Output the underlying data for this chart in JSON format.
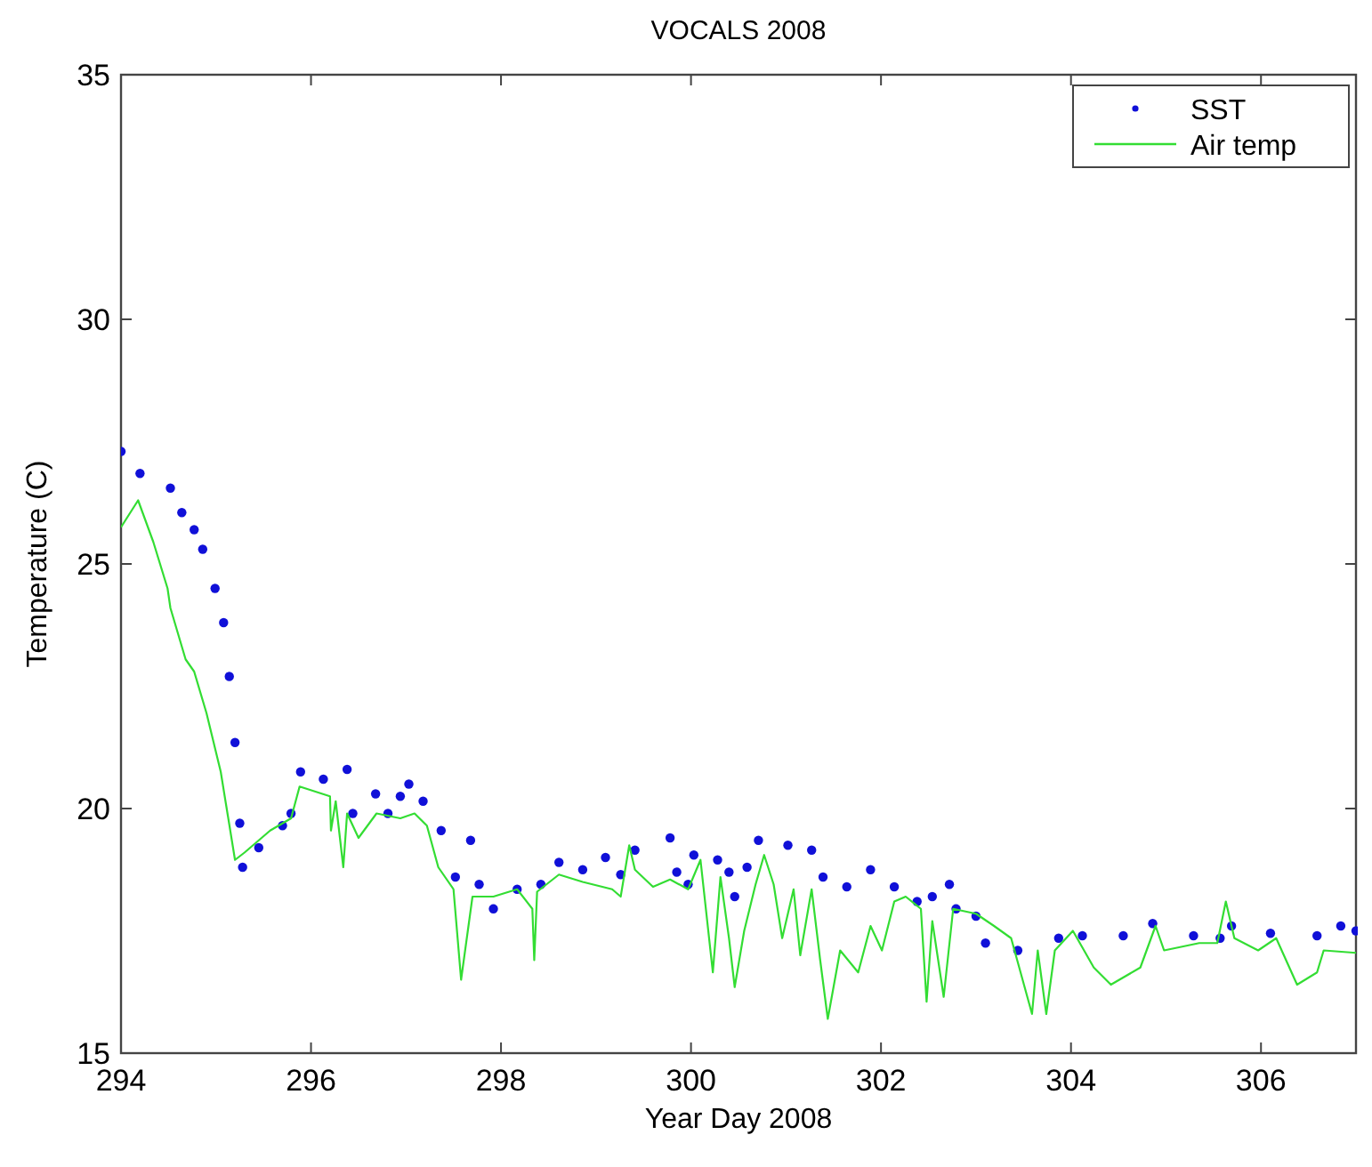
{
  "chart_data": {
    "type": "line",
    "title": "VOCALS 2008",
    "xlabel": "Year Day 2008",
    "ylabel": "Temperature (C)",
    "xlim": [
      294,
      307
    ],
    "xticks": [
      294,
      296,
      298,
      300,
      302,
      304,
      306
    ],
    "ylim": [
      15,
      35
    ],
    "yticks": [
      15,
      20,
      25,
      30,
      35
    ],
    "grid": false,
    "legend": "top right",
    "series": [
      {
        "name": "SST",
        "type": "scatter",
        "marker": "circle",
        "color": "#1010d8",
        "x": [
          294.0,
          294.2,
          294.52,
          294.64,
          294.77,
          294.86,
          294.99,
          295.08,
          295.14,
          295.2,
          295.25,
          295.28,
          295.45,
          295.7,
          295.79,
          295.89,
          296.13,
          296.38,
          296.44,
          296.68,
          296.81,
          296.94,
          297.03,
          297.18,
          297.37,
          297.52,
          297.68,
          297.77,
          297.92,
          298.17,
          298.42,
          298.61,
          298.86,
          299.1,
          299.26,
          299.41,
          299.78,
          299.85,
          299.97,
          300.03,
          300.28,
          300.4,
          300.46,
          300.59,
          300.71,
          301.02,
          301.27,
          301.39,
          301.64,
          301.89,
          302.14,
          302.38,
          302.54,
          302.72,
          302.79,
          303.0,
          303.1,
          303.44,
          303.87,
          304.12,
          304.55,
          304.86,
          305.29,
          305.57,
          305.69,
          306.1,
          306.59,
          306.84,
          307.0
        ],
        "values": [
          27.3,
          26.85,
          26.55,
          26.05,
          25.7,
          25.3,
          24.5,
          23.8,
          22.7,
          21.35,
          19.7,
          18.8,
          19.2,
          19.65,
          19.9,
          20.75,
          20.6,
          20.8,
          19.9,
          20.3,
          19.9,
          20.25,
          20.5,
          20.15,
          19.55,
          18.6,
          19.35,
          18.45,
          17.95,
          18.35,
          18.45,
          18.9,
          18.75,
          19.0,
          18.65,
          19.15,
          19.4,
          18.7,
          18.45,
          19.05,
          18.95,
          18.7,
          18.2,
          18.8,
          19.35,
          19.25,
          19.15,
          18.6,
          18.4,
          18.75,
          18.4,
          18.1,
          18.2,
          18.45,
          17.95,
          17.8,
          17.25,
          17.1,
          17.35,
          17.4,
          17.4,
          17.65,
          17.4,
          17.35,
          17.6,
          17.45,
          17.4,
          17.6,
          17.5
        ]
      },
      {
        "name": "Air temp",
        "type": "line",
        "marker": "none",
        "line_style": "solid",
        "color": "#33dd33",
        "x": [
          294.0,
          294.18,
          294.34,
          294.49,
          294.52,
          294.68,
          294.77,
          294.9,
          295.05,
          295.2,
          295.3,
          295.57,
          295.79,
          295.88,
          296.2,
          296.21,
          296.26,
          296.34,
          296.38,
          296.5,
          296.69,
          296.94,
          297.09,
          297.22,
          297.34,
          297.5,
          297.58,
          297.7,
          297.92,
          298.17,
          298.33,
          298.35,
          298.38,
          298.61,
          298.86,
          299.17,
          299.26,
          299.35,
          299.41,
          299.6,
          299.78,
          299.97,
          300.1,
          300.23,
          300.31,
          300.4,
          300.46,
          300.56,
          300.68,
          300.77,
          300.87,
          300.96,
          301.08,
          301.15,
          301.27,
          301.36,
          301.44,
          301.57,
          301.76,
          301.89,
          302.01,
          302.14,
          302.26,
          302.42,
          302.48,
          302.54,
          302.66,
          302.76,
          303.0,
          303.19,
          303.37,
          303.59,
          303.65,
          303.74,
          303.83,
          304.02,
          304.24,
          304.42,
          304.73,
          304.89,
          304.98,
          305.35,
          305.54,
          305.63,
          305.72,
          305.97,
          306.16,
          306.38,
          306.59,
          306.66,
          307.0
        ],
        "values": [
          25.75,
          26.3,
          25.45,
          24.5,
          24.1,
          23.05,
          22.8,
          21.95,
          20.75,
          18.95,
          19.1,
          19.55,
          19.8,
          20.45,
          20.25,
          19.55,
          20.15,
          18.8,
          19.9,
          19.4,
          19.9,
          19.8,
          19.9,
          19.65,
          18.8,
          18.35,
          16.5,
          18.2,
          18.2,
          18.35,
          17.95,
          16.9,
          18.3,
          18.65,
          18.5,
          18.35,
          18.2,
          19.25,
          18.75,
          18.4,
          18.55,
          18.35,
          18.95,
          16.65,
          18.6,
          17.35,
          16.35,
          17.5,
          18.45,
          19.05,
          18.45,
          17.35,
          18.35,
          17.0,
          18.35,
          16.9,
          15.7,
          17.1,
          16.65,
          17.6,
          17.1,
          18.1,
          18.2,
          17.95,
          16.05,
          17.7,
          16.15,
          17.95,
          17.85,
          17.6,
          17.35,
          15.8,
          17.1,
          15.8,
          17.1,
          17.5,
          16.75,
          16.4,
          16.75,
          17.6,
          17.1,
          17.25,
          17.25,
          18.1,
          17.35,
          17.1,
          17.35,
          16.4,
          16.65,
          17.1,
          17.05
        ]
      }
    ]
  }
}
